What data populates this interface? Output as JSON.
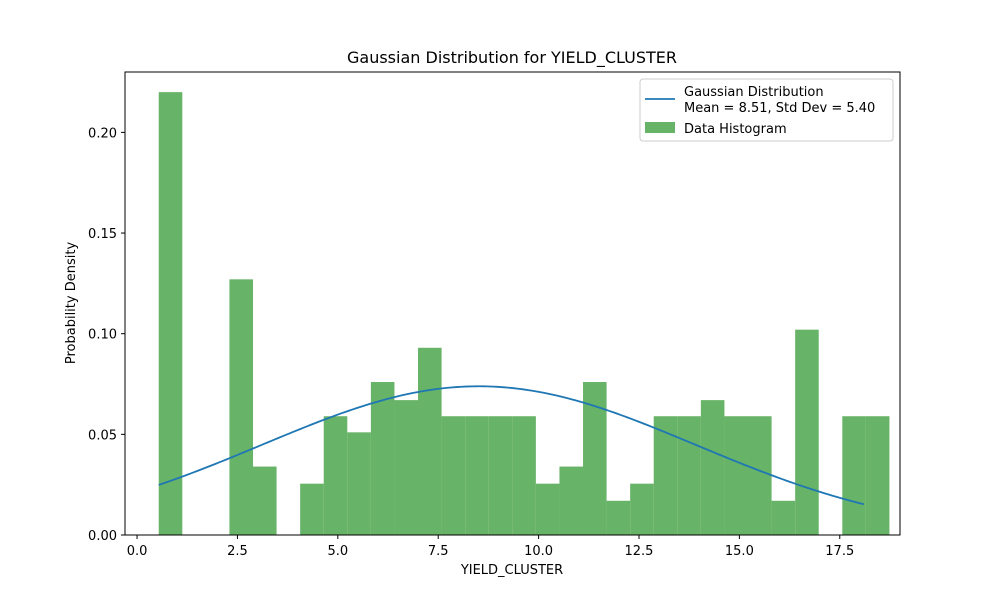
{
  "chart_data": {
    "type": "bar",
    "title": "Gaussian Distribution for YIELD_CLUSTER",
    "xlabel": "YIELD_CLUSTER",
    "ylabel": "Probability Density",
    "xlim": [
      -0.3,
      19.0
    ],
    "ylim": [
      0,
      0.23
    ],
    "x_ticks": [
      0.0,
      2.5,
      5.0,
      7.5,
      10.0,
      12.5,
      15.0,
      17.5
    ],
    "x_tick_labels": [
      "0.0",
      "2.5",
      "5.0",
      "7.5",
      "10.0",
      "12.5",
      "15.0",
      "17.5"
    ],
    "y_ticks": [
      0.0,
      0.05,
      0.1,
      0.15,
      0.2
    ],
    "y_tick_labels": [
      "0.00",
      "0.05",
      "0.10",
      "0.15",
      "0.20"
    ],
    "grid": false,
    "legend_position": "top-right",
    "histogram": {
      "name": "Data Histogram",
      "color": "#4CA64C",
      "alpha": 0.85,
      "bin_start": 0.54,
      "bin_width": 0.587,
      "densities": [
        0.22,
        0.0,
        0.0,
        0.127,
        0.034,
        0.0,
        0.0255,
        0.059,
        0.051,
        0.076,
        0.067,
        0.093,
        0.059,
        0.059,
        0.059,
        0.059,
        0.0255,
        0.034,
        0.076,
        0.017,
        0.0255,
        0.059,
        0.059,
        0.067,
        0.059,
        0.059,
        0.017,
        0.102,
        0.0,
        0.059,
        0.059
      ]
    },
    "gaussian": {
      "name_line1": "Gaussian Distribution",
      "name_line2": "Mean = 8.51, Std Dev = 5.40",
      "mean": 8.51,
      "std": 5.4,
      "x_min": 0.54,
      "x_max": 18.1,
      "color": "#1f77b4"
    }
  }
}
